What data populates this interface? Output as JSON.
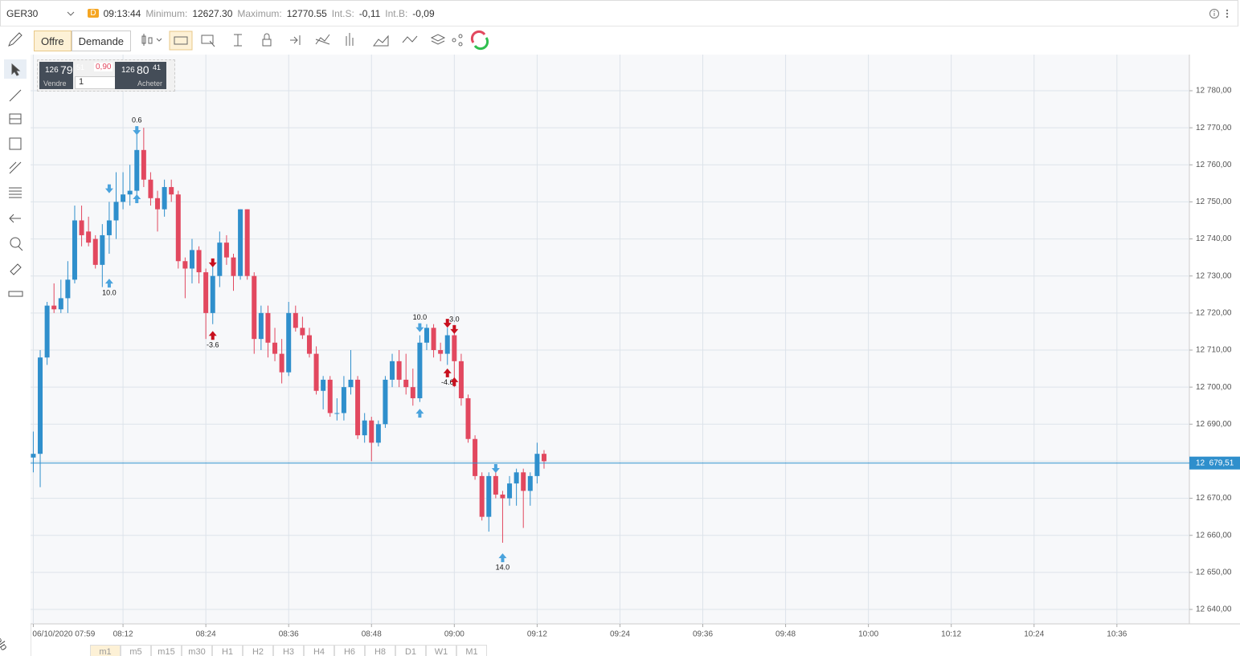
{
  "header": {
    "symbol": "GER30",
    "badge": "D",
    "time": "09:13:44",
    "min_label": "Minimum:",
    "min": "12627.30",
    "max_label": "Maximum:",
    "max": "12770.55",
    "ints_label": "Int.S:",
    "ints": "-0,11",
    "intb_label": "Int.B:",
    "intb": "-0,09"
  },
  "toolbar": {
    "bid": "Offre",
    "ask": "Demande"
  },
  "trade": {
    "sell_big": "126",
    "sell_mid": "79",
    "sell_small": "51",
    "spread": "0,90",
    "buy_big": "126",
    "buy_mid": "80",
    "buy_small": "41",
    "sell": "Vendre",
    "qty": "1",
    "buy": "Acheter"
  },
  "tabs": [
    "m1",
    "m5",
    "m15",
    "m30",
    "H1",
    "H2",
    "H3",
    "H4",
    "H6",
    "H8",
    "D1",
    "W1",
    "M1"
  ],
  "help": "Help",
  "chart_data": {
    "type": "candlestick",
    "up_color": "#2f8fcc",
    "down_color": "#e2485f",
    "grid": true,
    "x": [
      479,
      480,
      481,
      482,
      483,
      484,
      485,
      486,
      487,
      488,
      489,
      490,
      491,
      492,
      493,
      494,
      495,
      496,
      497,
      498,
      499,
      500,
      501,
      502,
      503,
      504,
      505,
      506,
      507,
      508,
      509,
      510,
      511,
      512,
      513,
      514,
      515,
      516,
      517,
      518,
      519,
      520,
      521,
      522,
      523,
      524,
      525,
      526,
      527,
      528,
      529,
      530,
      531,
      532,
      533,
      534,
      535,
      536,
      537,
      538,
      539,
      540,
      541,
      542,
      543,
      544,
      545,
      546,
      547,
      548,
      549,
      550,
      551,
      552,
      553
    ],
    "open": [
      12681,
      12682,
      12708,
      12722,
      12721,
      12724,
      12729,
      12745,
      12742,
      12740,
      12733,
      12741,
      12745,
      12750,
      12752,
      12753,
      12764,
      12756,
      12751,
      12748,
      12754,
      12752,
      12734,
      12732,
      12737,
      12731,
      12720,
      12730,
      12739,
      12735,
      12730,
      12748,
      12730,
      12713,
      12720,
      12712,
      12709,
      12704,
      12720,
      12716,
      12714,
      12709,
      12699,
      12702,
      12693,
      12693,
      12700,
      12702,
      12687,
      12691,
      12685,
      12690,
      12702,
      12707,
      12702,
      12700,
      12697,
      12712,
      12716,
      12710,
      12709,
      12714,
      12707,
      12697,
      12686,
      12676,
      12665,
      12676,
      12671,
      12670,
      12674,
      12677,
      12672,
      12676,
      12682
    ],
    "high": [
      12688,
      12710,
      12723,
      12728,
      12729,
      12734,
      12749,
      12749,
      12746,
      12741,
      12744,
      12750,
      12758,
      12758,
      12760,
      12769,
      12770,
      12758,
      12753,
      12756,
      12756,
      12753,
      12735,
      12740,
      12738,
      12732,
      12733,
      12742,
      12741,
      12736,
      12748,
      12748,
      12731,
      12722,
      12722,
      12716,
      12713,
      12723,
      12722,
      12719,
      12716,
      12711,
      12703,
      12703,
      12697,
      12703,
      12710,
      12703,
      12693,
      12692,
      12691,
      12703,
      12709,
      12710,
      12709,
      12705,
      12714,
      12717,
      12717,
      12712,
      12716,
      12715,
      12709,
      12698,
      12687,
      12677,
      12677,
      12679,
      12672,
      12676,
      12678,
      12678,
      12677,
      12685,
      12683
    ],
    "low": [
      12677,
      12673,
      12706,
      12720,
      12720,
      12720,
      12728,
      12738,
      12738,
      12732,
      12727,
      12736,
      12740,
      12748,
      12749,
      12751,
      12754,
      12749,
      12742,
      12746,
      12750,
      12732,
      12724,
      12728,
      12728,
      12713,
      12717,
      12727,
      12733,
      12726,
      12729,
      12729,
      12709,
      12710,
      12708,
      12707,
      12701,
      12703,
      12715,
      12713,
      12708,
      12698,
      12694,
      12692,
      12691,
      12691,
      12698,
      12686,
      12685,
      12680,
      12684,
      12689,
      12700,
      12700,
      12698,
      12695,
      12696,
      12710,
      12708,
      12707,
      12706,
      12700,
      12695,
      12685,
      12675,
      12664,
      12661,
      12670,
      12658,
      12668,
      12668,
      12662,
      12668,
      12674,
      12678
    ],
    "close": [
      12682,
      12708,
      12722,
      12721,
      12724,
      12729,
      12745,
      12741,
      12739,
      12733,
      12741,
      12745,
      12750,
      12752,
      12753,
      12764,
      12756,
      12751,
      12748,
      12754,
      12752,
      12734,
      12732,
      12737,
      12731,
      12720,
      12730,
      12739,
      12735,
      12730,
      12748,
      12730,
      12713,
      12720,
      12712,
      12709,
      12704,
      12720,
      12716,
      12714,
      12709,
      12699,
      12702,
      12693,
      12693,
      12700,
      12702,
      12687,
      12691,
      12685,
      12690,
      12702,
      12707,
      12702,
      12700,
      12697,
      12712,
      12716,
      12710,
      12709,
      12714,
      12707,
      12697,
      12686,
      12676,
      12665,
      12676,
      12671,
      12670,
      12674,
      12677,
      12672,
      12676,
      12682,
      12680
    ],
    "xlim": [
      478.6,
      646.5
    ],
    "xticks": [
      {
        "value": 479,
        "label": "06/10/2020 07:59"
      },
      {
        "value": 492,
        "label": "08:12"
      },
      {
        "value": 504,
        "label": "08:24"
      },
      {
        "value": 516,
        "label": "08:36"
      },
      {
        "value": 528,
        "label": "08:48"
      },
      {
        "value": 540,
        "label": "09:00"
      },
      {
        "value": 552,
        "label": "09:12"
      },
      {
        "value": 564,
        "label": "09:24"
      },
      {
        "value": 576,
        "label": "09:36"
      },
      {
        "value": 588,
        "label": "09:48"
      },
      {
        "value": 600,
        "label": "10:00"
      },
      {
        "value": 612,
        "label": "10:12"
      },
      {
        "value": 624,
        "label": "10:24"
      },
      {
        "value": 636,
        "label": "10:36"
      }
    ],
    "ylim": [
      12636.1,
      12789.75
    ],
    "yticks": [
      {
        "value": 12780,
        "label": "12 780,00"
      },
      {
        "value": 12770,
        "label": "12 770,00"
      },
      {
        "value": 12760,
        "label": "12 760,00"
      },
      {
        "value": 12750,
        "label": "12 750,00"
      },
      {
        "value": 12740,
        "label": "12 740,00"
      },
      {
        "value": 12730,
        "label": "12 730,00"
      },
      {
        "value": 12720,
        "label": "12 720,00"
      },
      {
        "value": 12710,
        "label": "12 710,00"
      },
      {
        "value": 12700,
        "label": "12 700,00"
      },
      {
        "value": 12690,
        "label": "12 690,00"
      },
      {
        "value": 12680,
        "label": "12 680,00"
      },
      {
        "value": 12670,
        "label": "12 670,00"
      },
      {
        "value": 12660,
        "label": "12 660,00"
      },
      {
        "value": 12650,
        "label": "12 650,00"
      },
      {
        "value": 12640,
        "label": "12 640,00"
      }
    ],
    "price_line": {
      "value": 12679.51,
      "label": "12  679,51",
      "color": "#2f8fcc"
    },
    "markers": [
      {
        "x": 494,
        "price": 12768.7,
        "direction": "down",
        "color": "#4aa3dd",
        "label": "0.6"
      },
      {
        "x": 494,
        "price": 12751.4,
        "direction": "up",
        "color": "#4aa3dd"
      },
      {
        "x": 490,
        "price": 12753,
        "direction": "down",
        "color": "#4aa3dd"
      },
      {
        "x": 490,
        "price": 12728.6,
        "direction": "up",
        "color": "#4aa3dd",
        "label": "10.0"
      },
      {
        "x": 505,
        "price": 12733,
        "direction": "down",
        "color": "#c8101e"
      },
      {
        "x": 505,
        "price": 12714.5,
        "direction": "up",
        "color": "#c8101e",
        "label": "-3.6"
      },
      {
        "x": 535,
        "price": 12715.5,
        "direction": "down",
        "color": "#4aa3dd",
        "label": "10.0"
      },
      {
        "x": 535,
        "price": 12693.5,
        "direction": "up",
        "color": "#4aa3dd"
      },
      {
        "x": 539,
        "price": 12716.7,
        "direction": "down",
        "color": "#c8101e"
      },
      {
        "x": 540,
        "price": 12715,
        "direction": "down",
        "color": "#c8101e",
        "label": "3.0"
      },
      {
        "x": 539,
        "price": 12704.4,
        "direction": "up",
        "color": "#c8101e",
        "label": "-4.6"
      },
      {
        "x": 540,
        "price": 12702,
        "direction": "up",
        "color": "#c8101e"
      },
      {
        "x": 546,
        "price": 12677.5,
        "direction": "down",
        "color": "#4aa3dd"
      },
      {
        "x": 547,
        "price": 12654.5,
        "direction": "up",
        "color": "#4aa3dd",
        "label": "14.0"
      }
    ]
  }
}
